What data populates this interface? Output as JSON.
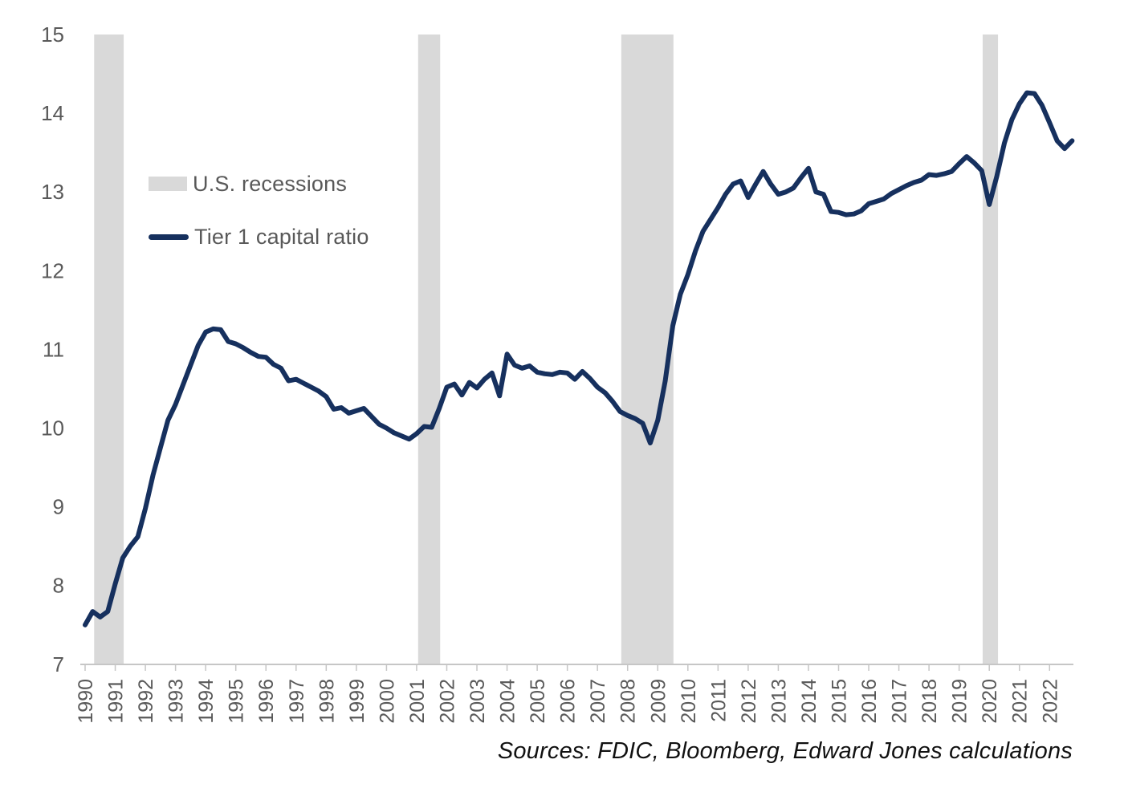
{
  "chart_data": {
    "type": "line",
    "title": "",
    "xlabel": "",
    "ylabel": "",
    "ylim": [
      7,
      15
    ],
    "y_ticks": [
      "7",
      "8",
      "9",
      "10",
      "11",
      "12",
      "13",
      "14",
      "15"
    ],
    "x_start": 1990,
    "x_step": 0.25,
    "x_tick_labels": [
      "1990",
      "1991",
      "1992",
      "1993",
      "1994",
      "1995",
      "1996",
      "1997",
      "1998",
      "1999",
      "2000",
      "2001",
      "2002",
      "2003",
      "2004",
      "2005",
      "2006",
      "2007",
      "2008",
      "2009",
      "2010",
      "2011",
      "2012",
      "2013",
      "2014",
      "2015",
      "2016",
      "2017",
      "2018",
      "2019",
      "2020",
      "2021",
      "2022"
    ],
    "grid": false,
    "legend_position": "upper-left-inside",
    "series": [
      {
        "name": "Tier 1 capital ratio",
        "values": [
          7.5,
          7.67,
          7.6,
          7.67,
          8.02,
          8.35,
          8.5,
          8.62,
          8.98,
          9.4,
          9.75,
          10.1,
          10.3,
          10.55,
          10.8,
          11.05,
          11.22,
          11.26,
          11.25,
          11.1,
          11.07,
          11.02,
          10.96,
          10.91,
          10.9,
          10.81,
          10.76,
          10.6,
          10.62,
          10.57,
          10.52,
          10.47,
          10.4,
          10.24,
          10.26,
          10.19,
          10.22,
          10.25,
          10.15,
          10.05,
          10.0,
          9.94,
          9.9,
          9.86,
          9.93,
          10.02,
          10.01,
          10.25,
          10.52,
          10.56,
          10.42,
          10.58,
          10.51,
          10.62,
          10.7,
          10.41,
          10.94,
          10.8,
          10.76,
          10.79,
          10.71,
          10.69,
          10.68,
          10.71,
          10.7,
          10.62,
          10.72,
          10.63,
          10.52,
          10.45,
          10.34,
          10.21,
          10.16,
          10.12,
          10.06,
          9.81,
          10.1,
          10.6,
          11.3,
          11.7,
          11.95,
          12.25,
          12.5,
          12.65,
          12.8,
          12.97,
          13.1,
          13.14,
          12.93,
          13.1,
          13.26,
          13.1,
          12.97,
          13.0,
          13.05,
          13.18,
          13.3,
          13.0,
          12.97,
          12.75,
          12.74,
          12.71,
          12.72,
          12.76,
          12.85,
          12.88,
          12.91,
          12.98,
          13.03,
          13.08,
          13.12,
          13.15,
          13.22,
          13.21,
          13.23,
          13.26,
          13.36,
          13.45,
          13.37,
          13.27,
          12.84,
          13.2,
          13.62,
          13.92,
          14.12,
          14.26,
          14.25,
          14.1,
          13.88,
          13.65,
          13.55,
          13.65
        ]
      }
    ],
    "recession_bands": [
      [
        1990.3,
        1991.28
      ],
      [
        2001.05,
        2001.78
      ],
      [
        2007.79,
        2009.52
      ],
      [
        2019.78,
        2020.29
      ]
    ]
  },
  "legend": {
    "items": [
      {
        "label": "U.S. recessions",
        "swatch": "band"
      },
      {
        "label": "Tier 1 capital ratio",
        "swatch": "line"
      }
    ]
  },
  "source_note": "Sources: FDIC, Bloomberg, Edward Jones calculations",
  "colors": {
    "line": "#16305e",
    "band": "#d9d9d9",
    "axis": "#c6c6c6",
    "tick_text": "#595959"
  }
}
